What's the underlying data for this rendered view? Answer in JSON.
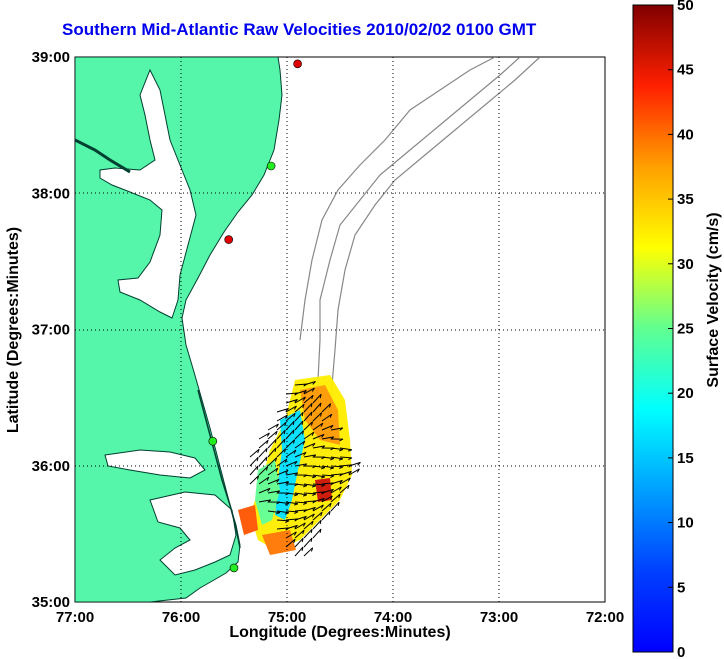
{
  "title": "Southern Mid-Atlantic Raw Velocities 2010/02/02 0100 GMT",
  "xlabel": "Longitude (Degrees:Minutes)",
  "ylabel": "Latitude (Degrees:Minutes)",
  "xticks": [
    "77:00",
    "76:00",
    "75:00",
    "74:00",
    "73:00",
    "72:00"
  ],
  "yticks": [
    "39:00",
    "38:00",
    "37:00",
    "36:00",
    "35:00"
  ],
  "colorbar": {
    "label": "Surface Velocity (cm/s)",
    "ticks": [
      "0",
      "5",
      "10",
      "15",
      "20",
      "25",
      "30",
      "35",
      "40",
      "45",
      "50"
    ],
    "range": [
      0,
      50
    ]
  },
  "colors": {
    "land": "#55f5aa",
    "coastline": "#004030",
    "bathymetry": "#888888",
    "title": "#0000ee"
  },
  "stations": [
    {
      "name": "station-red-north",
      "lon": -74.9,
      "lat": 38.95,
      "color": "#e00000"
    },
    {
      "name": "station-green-1",
      "lon": -75.15,
      "lat": 38.2,
      "color": "#22ee22"
    },
    {
      "name": "station-red-mid",
      "lon": -75.55,
      "lat": 37.66,
      "color": "#e00000"
    },
    {
      "name": "station-green-2",
      "lon": -75.7,
      "lat": 36.18,
      "color": "#22ee22"
    },
    {
      "name": "station-green-3",
      "lon": -75.5,
      "lat": 35.25,
      "color": "#22ee22"
    }
  ]
}
